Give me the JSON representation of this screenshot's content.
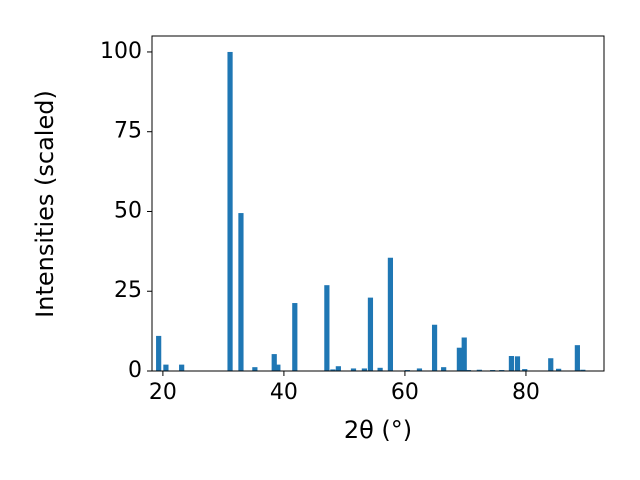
{
  "chart_data": {
    "type": "bar",
    "x_label": "2θ (°)",
    "y_label": "Intensities (scaled)",
    "x": [
      19.3,
      20.5,
      23.1,
      31.1,
      32.9,
      35.2,
      38.4,
      39.0,
      41.8,
      47.1,
      48.1,
      49.0,
      51.5,
      53.3,
      54.3,
      55.9,
      57.6,
      60.4,
      62.4,
      64.9,
      66.4,
      69.0,
      69.8,
      70.5,
      72.3,
      74.5,
      76.0,
      77.6,
      78.6,
      79.8,
      84.1,
      85.4,
      88.5,
      89.4
    ],
    "values": [
      11,
      2,
      2,
      100,
      49.5,
      1.2,
      5.3,
      2,
      21.3,
      26.9,
      0.5,
      1.5,
      0.8,
      0.8,
      23,
      1,
      35.5,
      0.3,
      0.8,
      14.5,
      1.2,
      7.3,
      10.5,
      0.3,
      0.4,
      0.3,
      0.3,
      4.7,
      4.6,
      0.6,
      4.0,
      0.7,
      8.1,
      0.4
    ],
    "color": "#1f77b4",
    "xlim": [
      18.2,
      92.9
    ],
    "ylim": [
      0,
      105
    ],
    "xticks": [
      20,
      40,
      60,
      80
    ],
    "yticks": [
      0,
      25,
      50,
      75,
      100
    ]
  }
}
